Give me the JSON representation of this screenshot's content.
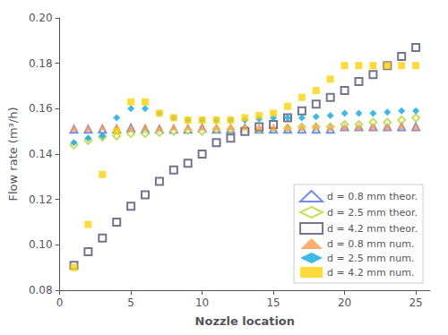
{
  "chart_data": {
    "type": "scatter",
    "xlabel": "Nozzle location",
    "ylabel": "Flow rate (m³/h)",
    "x": [
      1,
      2,
      3,
      4,
      5,
      6,
      7,
      8,
      9,
      10,
      11,
      12,
      13,
      14,
      15,
      16,
      17,
      18,
      19,
      20,
      21,
      22,
      23,
      24,
      25
    ],
    "series": [
      {
        "name": "d = 0.8 mm theor.",
        "marker": "open-triangle",
        "values": [
          0.151,
          0.151,
          0.151,
          0.151,
          0.1515,
          0.151,
          0.151,
          0.151,
          0.151,
          0.1515,
          0.151,
          0.151,
          0.1515,
          0.151,
          0.151,
          0.151,
          0.151,
          0.151,
          0.151,
          0.152,
          0.152,
          0.152,
          0.152,
          0.152,
          0.152
        ]
      },
      {
        "name": "d = 2.5 mm theor.",
        "marker": "open-diamond",
        "values": [
          0.144,
          0.146,
          0.1475,
          0.148,
          0.149,
          0.149,
          0.1495,
          0.15,
          0.1505,
          0.15,
          0.151,
          0.151,
          0.151,
          0.151,
          0.1515,
          0.1515,
          0.152,
          0.152,
          0.152,
          0.153,
          0.153,
          0.154,
          0.154,
          0.155,
          0.156
        ]
      },
      {
        "name": "d = 4.2 mm theor.",
        "marker": "open-square",
        "values": [
          0.091,
          0.097,
          0.103,
          0.11,
          0.117,
          0.122,
          0.128,
          0.133,
          0.136,
          0.14,
          0.145,
          0.147,
          0.15,
          0.152,
          0.153,
          0.156,
          0.159,
          0.162,
          0.165,
          0.168,
          0.172,
          0.175,
          0.179,
          0.183,
          0.187
        ]
      },
      {
        "name": "d = 0.8 mm num.",
        "marker": "triangle",
        "values": [
          0.1515,
          0.1515,
          0.152,
          0.152,
          0.1515,
          0.152,
          0.1515,
          0.152,
          0.152,
          0.152,
          0.152,
          0.152,
          0.152,
          0.152,
          0.152,
          0.152,
          0.152,
          0.1525,
          0.152,
          0.152,
          0.152,
          0.152,
          0.152,
          0.1525,
          0.152
        ]
      },
      {
        "name": "d = 2.5 mm num.",
        "marker": "diamond",
        "values": [
          0.145,
          0.147,
          0.148,
          0.156,
          0.16,
          0.16,
          0.158,
          0.156,
          0.155,
          0.155,
          0.155,
          0.155,
          0.155,
          0.1555,
          0.156,
          0.156,
          0.156,
          0.1565,
          0.157,
          0.158,
          0.158,
          0.158,
          0.1585,
          0.159,
          0.159
        ]
      },
      {
        "name": "d = 4.2 mm num.",
        "marker": "square",
        "values": [
          0.09,
          0.109,
          0.131,
          0.15,
          0.163,
          0.163,
          0.158,
          0.156,
          0.155,
          0.155,
          0.155,
          0.155,
          0.156,
          0.157,
          0.158,
          0.161,
          0.165,
          0.168,
          0.173,
          0.179,
          0.179,
          0.179,
          0.179,
          0.179,
          0.179
        ]
      }
    ],
    "xlim": [
      0,
      26
    ],
    "xticks": [
      0,
      5,
      10,
      15,
      20,
      25
    ],
    "ylim": [
      0.08,
      0.2
    ],
    "yticks": [
      0.08,
      {
        "value": 0.1,
        "label": "0.10"
      },
      0.12,
      0.14,
      0.16,
      0.18,
      {
        "value": 0.2,
        "label": "0.20"
      }
    ],
    "grid": false,
    "legend": "lower right"
  }
}
